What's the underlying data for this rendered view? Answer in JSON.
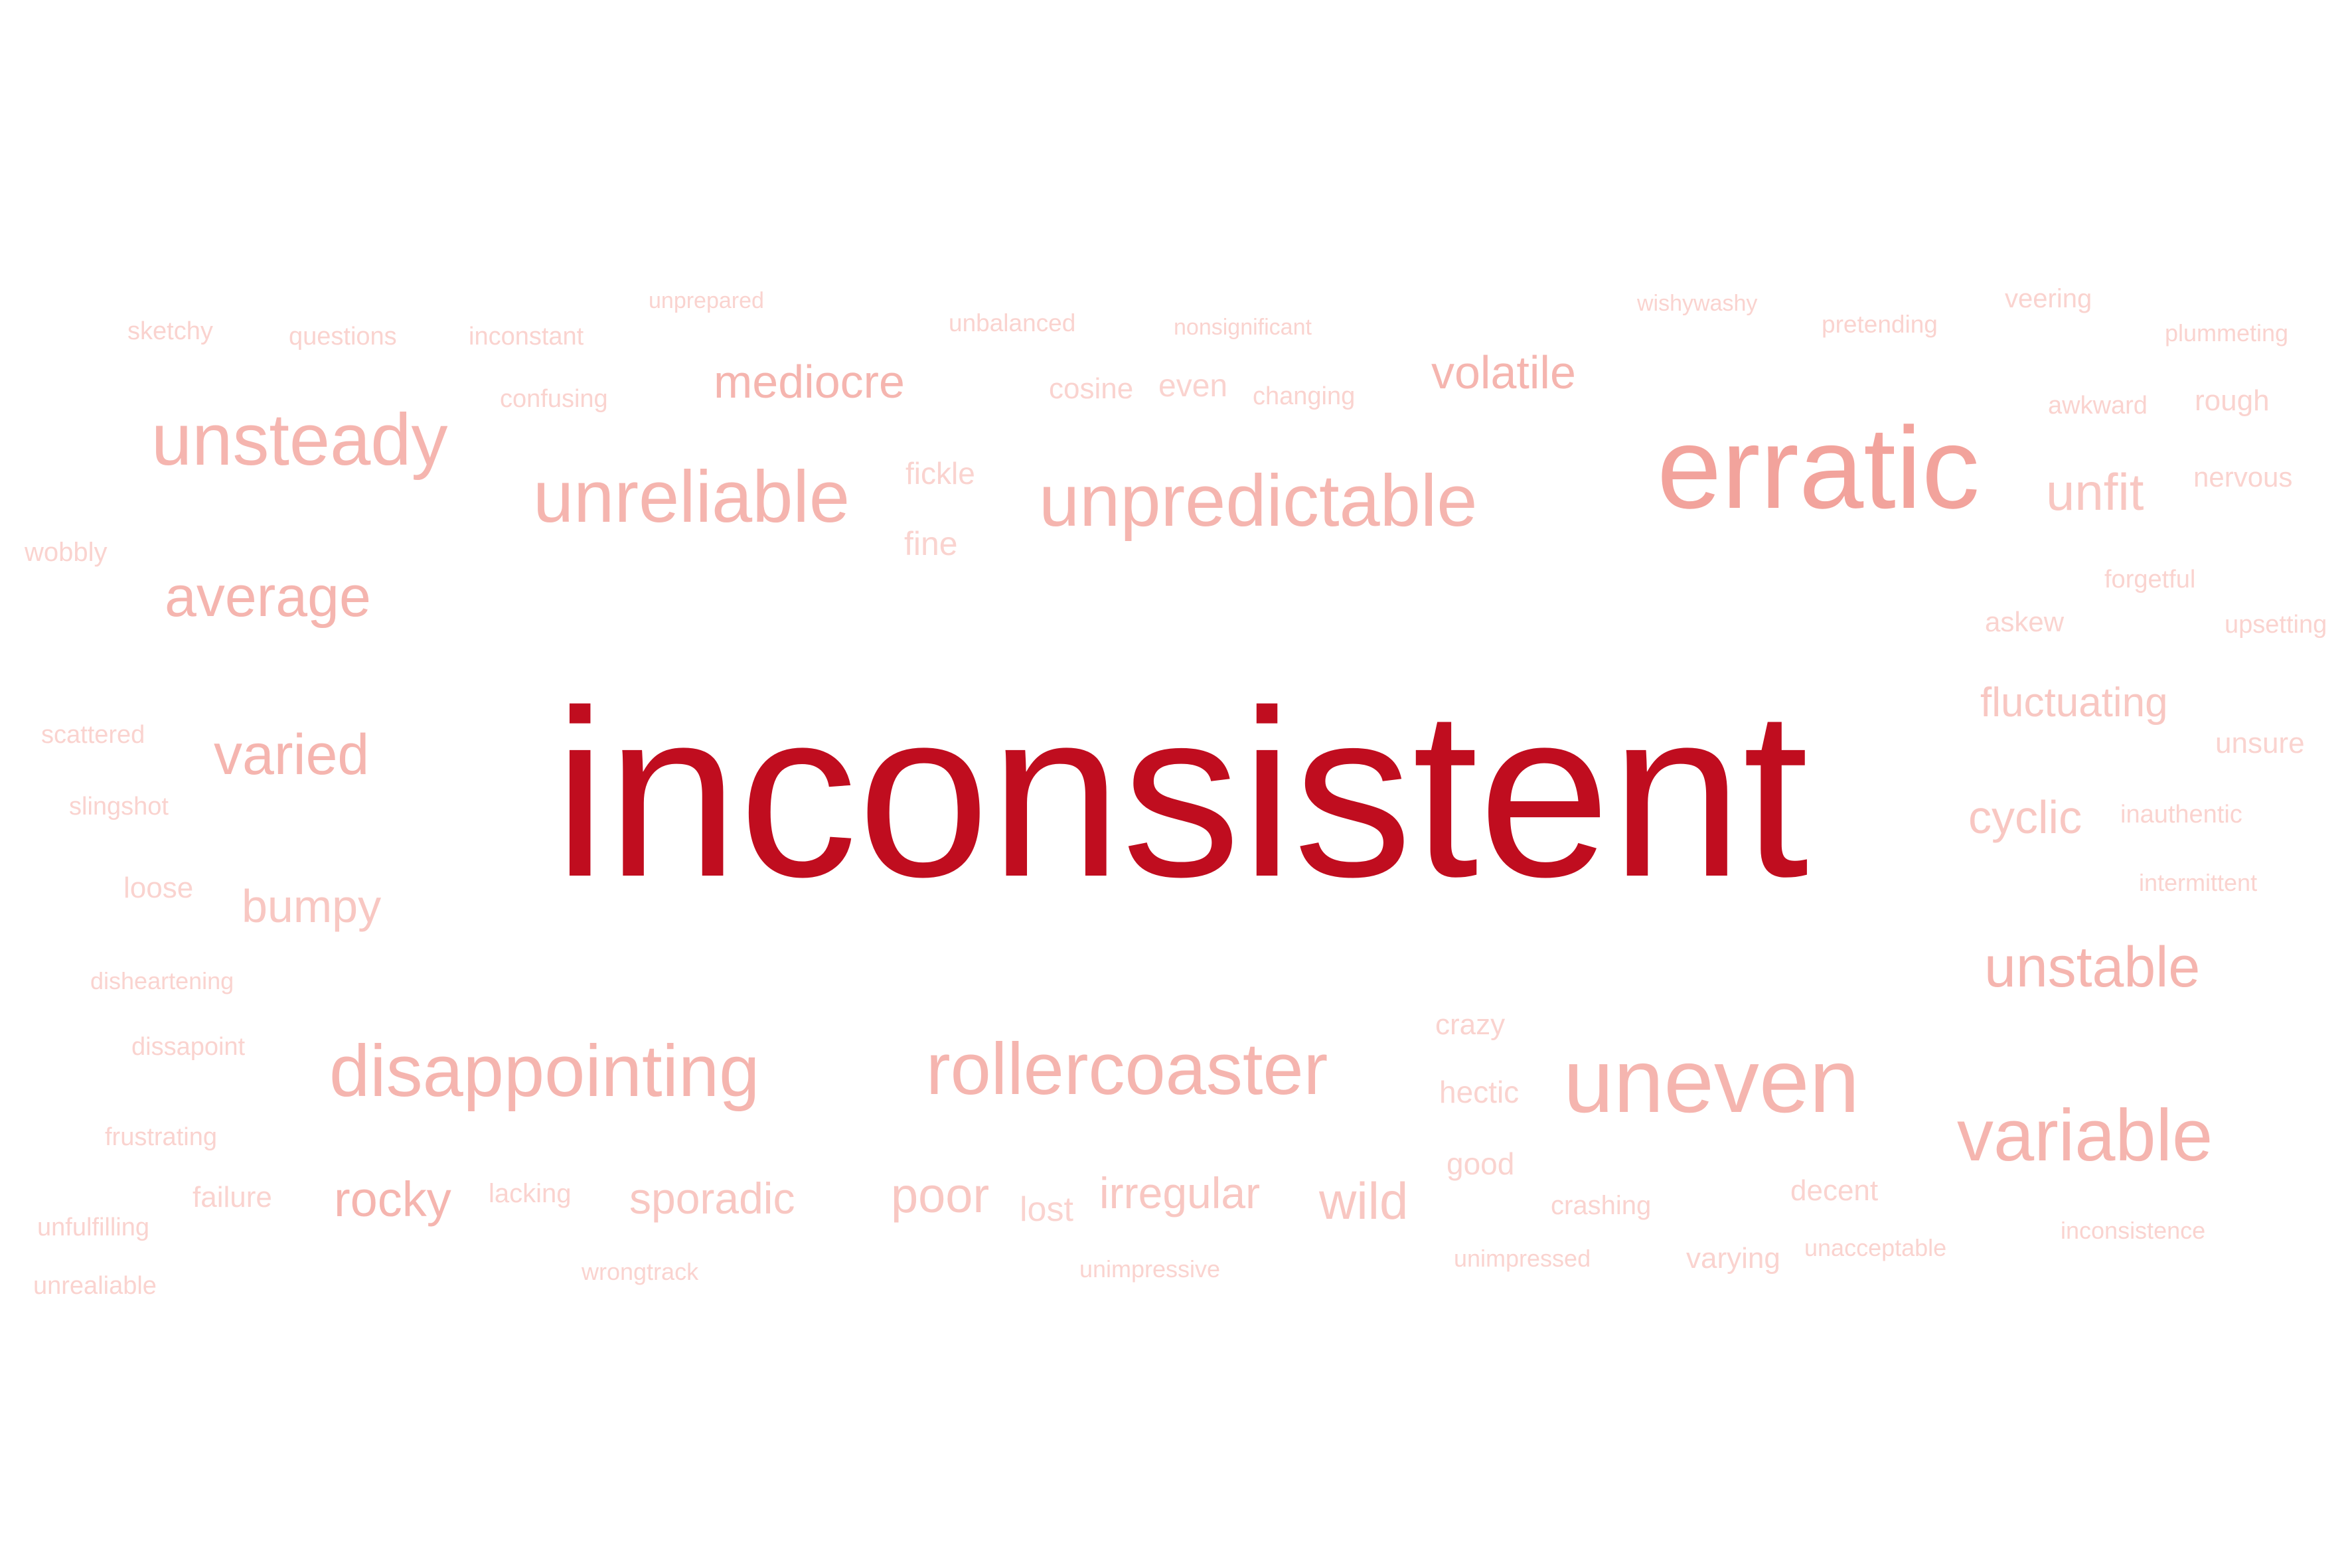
{
  "cloud": {
    "colors": {
      "primary": "#c00d1f",
      "tier1": "#f2a39c",
      "tier2": "#f5b5af",
      "tier3": "#f8c7c2",
      "tier4": "#fad3cf"
    },
    "words": {
      "inconsistent": "inconsistent",
      "erratic": "erratic",
      "unpredictable": "unpredictable",
      "unreliable": "unreliable",
      "unsteady": "unsteady",
      "uneven": "uneven",
      "variable": "variable",
      "rollercoaster": "rollercoaster",
      "disappointing": "disappointing",
      "unstable": "unstable",
      "average": "average",
      "varied": "varied",
      "mediocre": "mediocre",
      "volatile": "volatile",
      "unfit": "unfit",
      "fluctuating": "fluctuating",
      "cyclic": "cyclic",
      "bumpy": "bumpy",
      "rocky": "rocky",
      "sporadic": "sporadic",
      "poor": "poor",
      "irregular": "irregular",
      "wild": "wild",
      "sketchy": "sketchy",
      "questions": "questions",
      "inconstant": "inconstant",
      "unprepared": "unprepared",
      "unbalanced": "unbalanced",
      "nonsignificant": "nonsignificant",
      "wishywashy": "wishywashy",
      "pretending": "pretending",
      "veering": "veering",
      "plummeting": "plummeting",
      "confusing": "confusing",
      "cosine": "cosine",
      "even": "even",
      "changing": "changing",
      "awkward": "awkward",
      "rough": "rough",
      "fickle": "fickle",
      "nervous": "nervous",
      "wobbly": "wobbly",
      "fine": "fine",
      "forgetful": "forgetful",
      "askew": "askew",
      "upsetting": "upsetting",
      "scattered": "scattered",
      "unsure": "unsure",
      "slingshot": "slingshot",
      "inauthentic": "inauthentic",
      "loose": "loose",
      "intermittent": "intermittent",
      "disheartening": "disheartening",
      "crazy": "crazy",
      "dissapoint": "dissapoint",
      "hectic": "hectic",
      "frustrating": "frustrating",
      "good": "good",
      "failure": "failure",
      "lacking": "lacking",
      "lost": "lost",
      "decent": "decent",
      "crashing": "crashing",
      "unfulfilling": "unfulfilling",
      "inconsistence": "inconsistence",
      "unacceptable": "unacceptable",
      "unimpressed": "unimpressed",
      "varying": "varying",
      "wrongtrack": "wrongtrack",
      "unimpressive": "unimpressive",
      "unrealiable": "unrealiable"
    }
  }
}
